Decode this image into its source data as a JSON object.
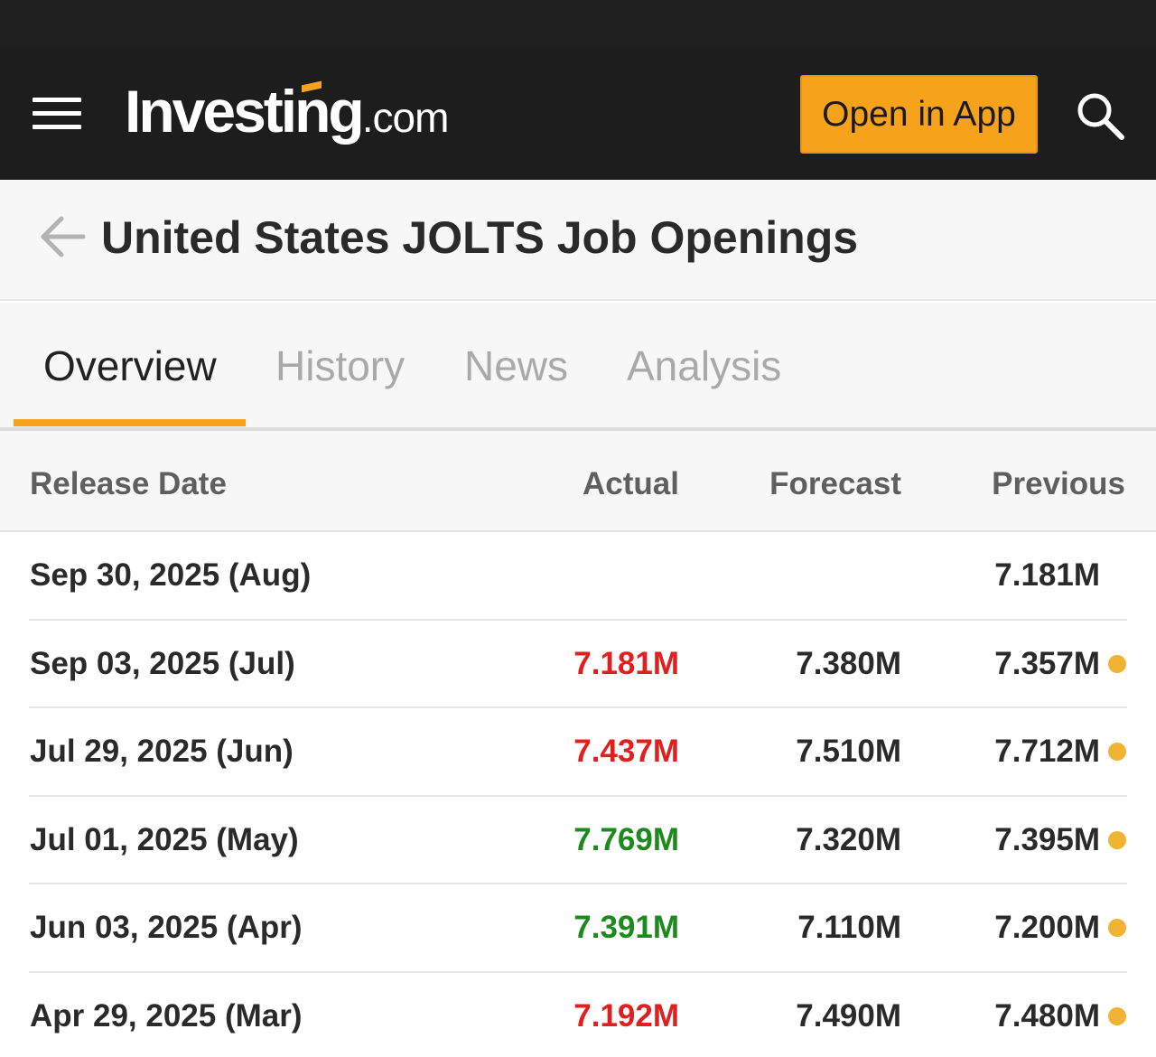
{
  "header": {
    "logo_main": "Investing",
    "logo_suffix": ".com",
    "open_app_label": "Open in App",
    "accent_color": "#f7a21b"
  },
  "page": {
    "title": "United States JOLTS Job Openings"
  },
  "tabs": [
    {
      "label": "Overview",
      "active": true
    },
    {
      "label": "History",
      "active": false
    },
    {
      "label": "News",
      "active": false
    },
    {
      "label": "Analysis",
      "active": false
    }
  ],
  "table": {
    "headers": {
      "release_date": "Release Date",
      "actual": "Actual",
      "forecast": "Forecast",
      "previous": "Previous"
    },
    "rows": [
      {
        "date": "Sep 30, 2025 (Aug)",
        "actual": "",
        "actual_color": "",
        "forecast": "",
        "previous": "7.181M",
        "dot": false
      },
      {
        "date": "Sep 03, 2025 (Jul)",
        "actual": "7.181M",
        "actual_color": "#e31e1e",
        "forecast": "7.380M",
        "previous": "7.357M",
        "dot": true
      },
      {
        "date": "Jul 29, 2025 (Jun)",
        "actual": "7.437M",
        "actual_color": "#e31e1e",
        "forecast": "7.510M",
        "previous": "7.712M",
        "dot": true
      },
      {
        "date": "Jul 01, 2025 (May)",
        "actual": "7.769M",
        "actual_color": "#1c8a1c",
        "forecast": "7.320M",
        "previous": "7.395M",
        "dot": true
      },
      {
        "date": "Jun 03, 2025 (Apr)",
        "actual": "7.391M",
        "actual_color": "#1c8a1c",
        "forecast": "7.110M",
        "previous": "7.200M",
        "dot": true
      },
      {
        "date": "Apr 29, 2025 (Mar)",
        "actual": "7.192M",
        "actual_color": "#e31e1e",
        "forecast": "7.490M",
        "previous": "7.480M",
        "dot": true
      }
    ],
    "dot_color": "#f0b432"
  }
}
